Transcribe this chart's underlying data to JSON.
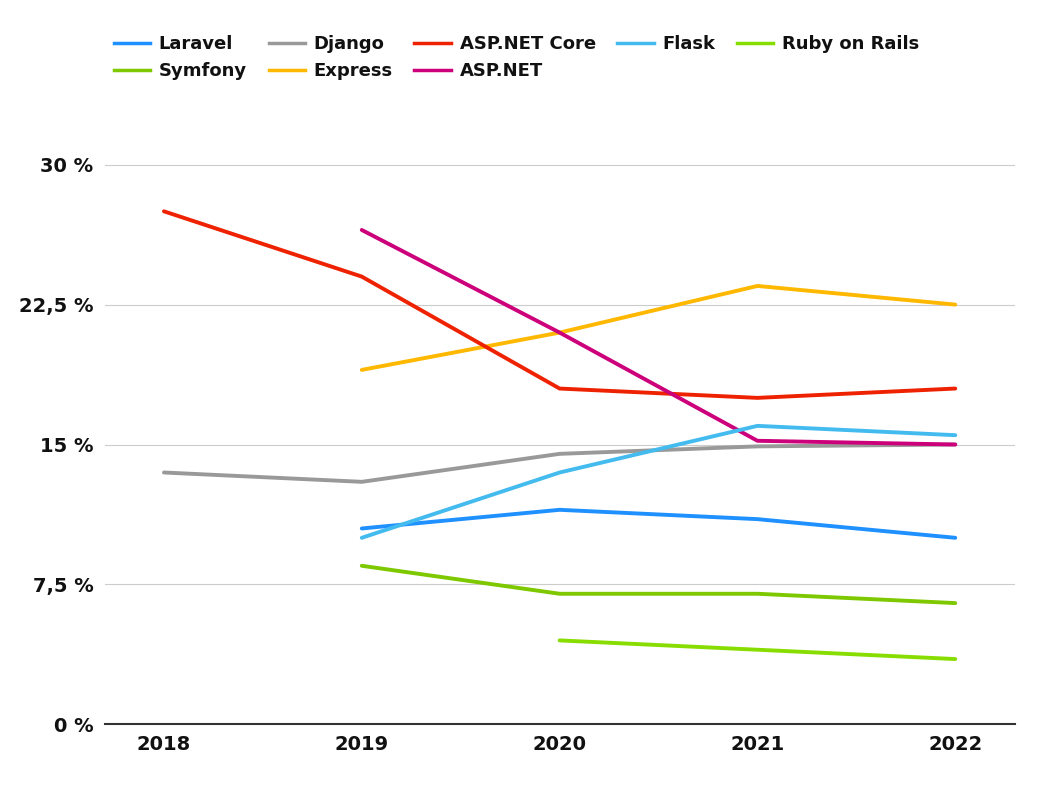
{
  "years": [
    2018,
    2019,
    2020,
    2021,
    2022
  ],
  "series": [
    {
      "name": "Laravel",
      "color": "#1E90FF",
      "data": [
        null,
        10.5,
        11.5,
        11.0,
        10.0
      ]
    },
    {
      "name": "Symfony",
      "color": "#7EC800",
      "data": [
        null,
        8.5,
        7.0,
        7.0,
        6.5
      ]
    },
    {
      "name": "Django",
      "color": "#999999",
      "data": [
        13.5,
        13.0,
        14.5,
        14.9,
        15.0
      ]
    },
    {
      "name": "Express",
      "color": "#FFB800",
      "data": [
        null,
        19.0,
        21.0,
        23.5,
        22.5
      ]
    },
    {
      "name": "ASP.NET Core",
      "color": "#EE2200",
      "data": [
        27.5,
        24.0,
        18.0,
        17.5,
        18.0
      ]
    },
    {
      "name": "ASP.NET",
      "color": "#CC007A",
      "data": [
        null,
        26.5,
        21.0,
        15.2,
        15.0
      ]
    },
    {
      "name": "Flask",
      "color": "#44BBEE",
      "data": [
        null,
        10.0,
        13.5,
        16.0,
        15.5
      ]
    },
    {
      "name": "Ruby on Rails",
      "color": "#88DD00",
      "data": [
        null,
        null,
        4.5,
        4.0,
        3.5
      ]
    }
  ],
  "ytick_vals": [
    0,
    7.5,
    15,
    22.5,
    30
  ],
  "ytick_labels": [
    "0 %",
    "7,5 %",
    "15 %",
    "22,5 %",
    "30 %"
  ],
  "xlim": [
    2017.7,
    2022.3
  ],
  "ylim": [
    0,
    32
  ],
  "linewidth": 2.8,
  "grid_color": "#cccccc",
  "legend_row1": [
    "Laravel",
    "Symfony",
    "Django",
    "Express",
    "ASP.NET Core"
  ],
  "legend_row2": [
    "ASP.NET",
    "Flask",
    "Ruby on Rails"
  ]
}
